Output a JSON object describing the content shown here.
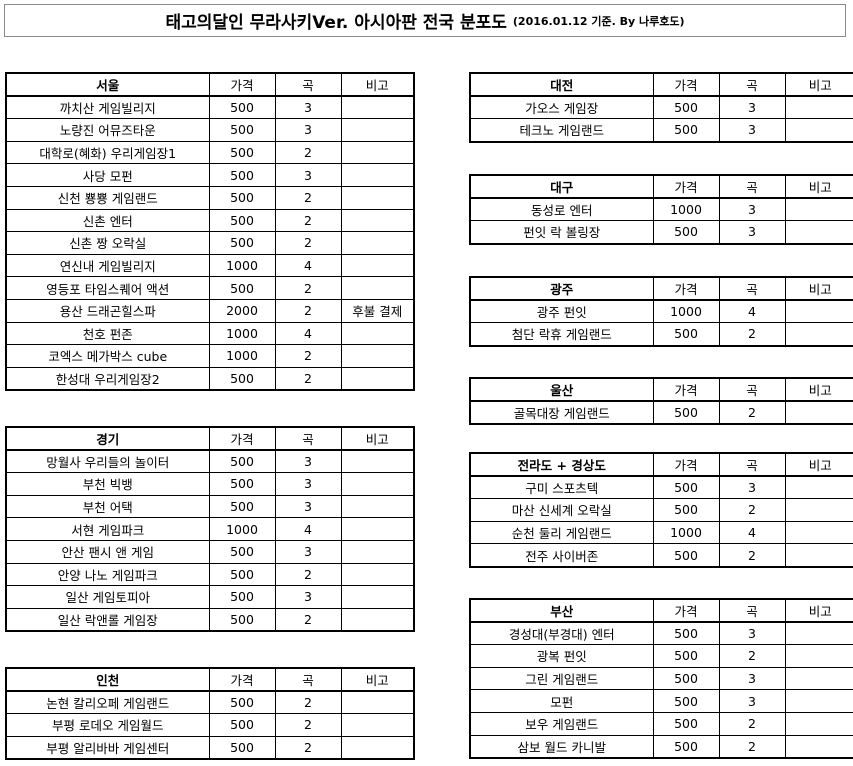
{
  "title": {
    "main": "태고의달인 무라사키Ver. 아시아판 전국 분포도",
    "sub": "(2016.01.12 기준. By 나루호도)"
  },
  "columns": {
    "price": "가격",
    "songs": "곡",
    "note": "비고"
  },
  "left": [
    {
      "name": "서울",
      "rows": [
        [
          "까치산 게임빌리지",
          "500",
          "3",
          ""
        ],
        [
          "노량진 어뮤즈타운",
          "500",
          "3",
          ""
        ],
        [
          "대학로(혜화) 우리게임장1",
          "500",
          "2",
          ""
        ],
        [
          "사당 모펀",
          "500",
          "3",
          ""
        ],
        [
          "신천 뿅뿅 게임랜드",
          "500",
          "2",
          ""
        ],
        [
          "신촌 엔터",
          "500",
          "2",
          ""
        ],
        [
          "신촌 짱 오락실",
          "500",
          "2",
          ""
        ],
        [
          "연신내 게임빌리지",
          "1000",
          "4",
          ""
        ],
        [
          "영등포 타임스퀘어 액션",
          "500",
          "2",
          ""
        ],
        [
          "용산 드래곤힐스파",
          "2000",
          "2",
          "후불 결제"
        ],
        [
          "천호 펀존",
          "1000",
          "4",
          ""
        ],
        [
          "코엑스 메가박스 cube",
          "1000",
          "2",
          ""
        ],
        [
          "한성대 우리게임장2",
          "500",
          "2",
          ""
        ]
      ]
    },
    {
      "name": "경기",
      "rows": [
        [
          "망월사 우리들의 놀이터",
          "500",
          "3",
          ""
        ],
        [
          "부천 빅뱅",
          "500",
          "3",
          ""
        ],
        [
          "부천 어택",
          "500",
          "3",
          ""
        ],
        [
          "서현 게임파크",
          "1000",
          "4",
          ""
        ],
        [
          "안산 팬시 앤 게임",
          "500",
          "3",
          ""
        ],
        [
          "안양 나노 게임파크",
          "500",
          "2",
          ""
        ],
        [
          "일산 게임토피아",
          "500",
          "3",
          ""
        ],
        [
          "일산 락앤롤 게임장",
          "500",
          "2",
          ""
        ]
      ]
    },
    {
      "name": "인천",
      "rows": [
        [
          "논현 칼리오페 게임랜드",
          "500",
          "2",
          ""
        ],
        [
          "부평 로데오 게임월드",
          "500",
          "2",
          ""
        ],
        [
          "부평 알리바바 게임센터",
          "500",
          "2",
          ""
        ]
      ]
    }
  ],
  "right": [
    {
      "name": "대전",
      "rows": [
        [
          "가오스 게임장",
          "500",
          "3",
          ""
        ],
        [
          "테크노 게임랜드",
          "500",
          "3",
          ""
        ]
      ]
    },
    {
      "name": "대구",
      "rows": [
        [
          "동성로 엔터",
          "1000",
          "3",
          ""
        ],
        [
          "펀잇 락 볼링장",
          "500",
          "3",
          ""
        ]
      ]
    },
    {
      "name": "광주",
      "rows": [
        [
          "광주 펀잇",
          "1000",
          "4",
          ""
        ],
        [
          "첨단 락휴 게임랜드",
          "500",
          "2",
          ""
        ]
      ]
    },
    {
      "name": "울산",
      "rows": [
        [
          "골목대장 게임랜드",
          "500",
          "2",
          ""
        ]
      ]
    },
    {
      "name": "전라도 + 경상도",
      "rows": [
        [
          "구미 스포츠텍",
          "500",
          "3",
          ""
        ],
        [
          "마산 신세계 오락실",
          "500",
          "2",
          ""
        ],
        [
          "순천 둘리 게임랜드",
          "1000",
          "4",
          ""
        ],
        [
          "전주 사이버존",
          "500",
          "2",
          ""
        ]
      ]
    },
    {
      "name": "부산",
      "rows": [
        [
          "경성대(부경대) 엔터",
          "500",
          "3",
          ""
        ],
        [
          "광복 펀잇",
          "500",
          "2",
          ""
        ],
        [
          "그린 게임랜드",
          "500",
          "3",
          ""
        ],
        [
          "모펀",
          "500",
          "3",
          ""
        ],
        [
          "보우 게임랜드",
          "500",
          "2",
          ""
        ],
        [
          "삼보 월드 카니발",
          "500",
          "2",
          ""
        ]
      ]
    }
  ]
}
